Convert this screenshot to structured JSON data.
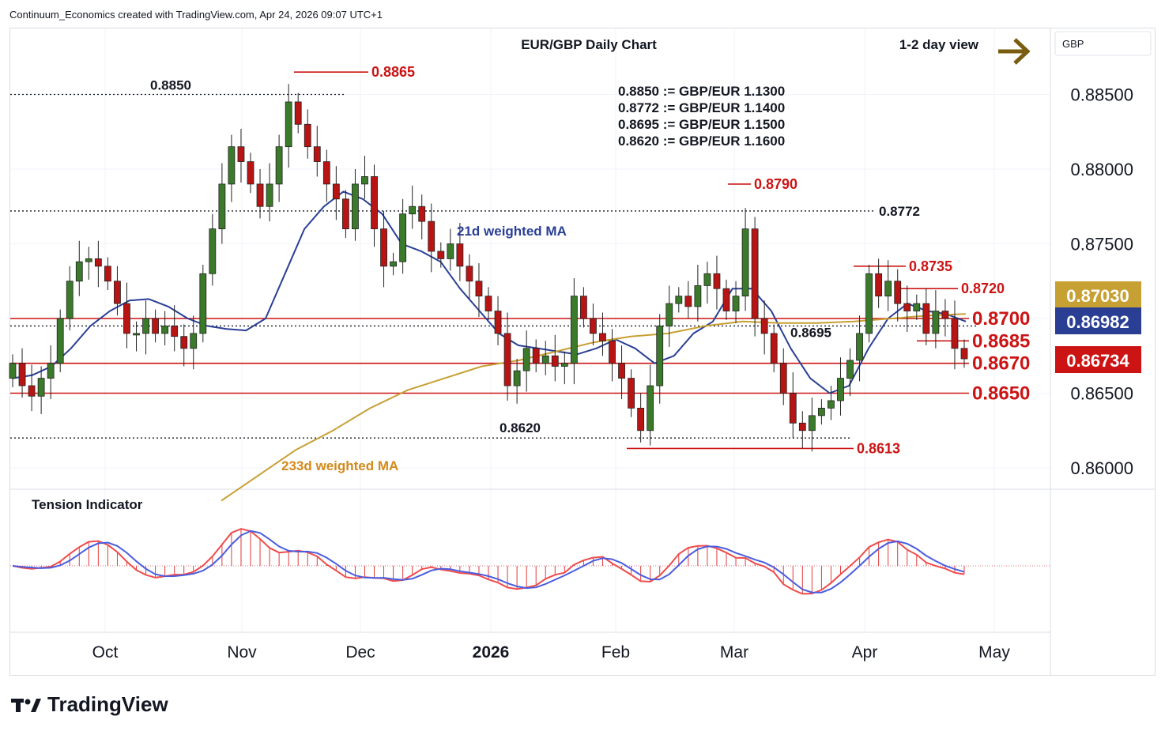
{
  "header": {
    "text": "Continuum_Economics created with TradingView.com, Apr 24, 2026 09:07 UTC+1"
  },
  "chart_data": {
    "type": "candlestick",
    "title": "EUR/GBP Daily Chart",
    "view_label": "1-2 day view",
    "currency": "GBP",
    "y_axis_ticks": [
      "0.88500",
      "0.88000",
      "0.87500",
      "0.86500",
      "0.86000"
    ],
    "x_axis_ticks": [
      "Oct",
      "Nov",
      "Dec",
      "2026",
      "Feb",
      "Mar",
      "Apr",
      "May"
    ],
    "ylim": [
      0.8585,
      0.89
    ],
    "conversions": [
      "0.8850 := GBP/EUR 1.1300",
      "0.8772 := GBP/EUR 1.1400",
      "0.8695 := GBP/EUR 1.1500",
      "0.8620 := GBP/EUR 1.1600"
    ],
    "dotted_levels": [
      {
        "label": "0.8850",
        "value": 0.885
      },
      {
        "label": "0.8772",
        "value": 0.8772
      },
      {
        "label": "0.8695",
        "value": 0.8695
      },
      {
        "label": "0.8620",
        "value": 0.862
      }
    ],
    "key_levels": [
      {
        "label": "0.8865",
        "value": 0.8865
      },
      {
        "label": "0.8790",
        "value": 0.879
      },
      {
        "label": "0.8735",
        "value": 0.8735
      },
      {
        "label": "0.8720",
        "value": 0.872
      },
      {
        "label": "0.8700",
        "value": 0.87
      },
      {
        "label": "0.8685",
        "value": 0.8685
      },
      {
        "label": "0.8670",
        "value": 0.867
      },
      {
        "label": "0.8650",
        "value": 0.865
      },
      {
        "label": "0.8613",
        "value": 0.8613
      }
    ],
    "price_badges": [
      {
        "label": "0.87030",
        "color": "#c7a033"
      },
      {
        "label": "0.86982",
        "color": "#2a3f94"
      },
      {
        "label": "0.86734",
        "color": "#cc1414"
      }
    ],
    "ma_labels": {
      "ma21": "21d weighted MA",
      "ma233": "233d weighted MA"
    },
    "sub_panel_title": "Tension Indicator",
    "close_series": [
      0.867,
      0.8655,
      0.8648,
      0.866,
      0.867,
      0.87,
      0.8725,
      0.8738,
      0.874,
      0.8735,
      0.8725,
      0.871,
      0.869,
      0.869,
      0.87,
      0.869,
      0.8695,
      0.8688,
      0.868,
      0.869,
      0.873,
      0.876,
      0.879,
      0.8815,
      0.8805,
      0.879,
      0.8775,
      0.879,
      0.8815,
      0.8845,
      0.883,
      0.8815,
      0.8805,
      0.879,
      0.878,
      0.876,
      0.879,
      0.8795,
      0.876,
      0.8735,
      0.8738,
      0.877,
      0.8775,
      0.8765,
      0.8745,
      0.874,
      0.875,
      0.8735,
      0.8725,
      0.8715,
      0.8705,
      0.869,
      0.8655,
      0.8665,
      0.868,
      0.867,
      0.8675,
      0.8668,
      0.867,
      0.8715,
      0.87,
      0.869,
      0.8685,
      0.867,
      0.866,
      0.864,
      0.8625,
      0.8655,
      0.8695,
      0.871,
      0.8715,
      0.8708,
      0.8722,
      0.873,
      0.872,
      0.8705,
      0.8715,
      0.876,
      0.87,
      0.869,
      0.867,
      0.865,
      0.863,
      0.8625,
      0.8635,
      0.864,
      0.8645,
      0.866,
      0.8672,
      0.869,
      0.873,
      0.8715,
      0.8725,
      0.871,
      0.8705,
      0.871,
      0.869,
      0.8705,
      0.87,
      0.868,
      0.8673
    ],
    "ma21_series": [
      0.866,
      0.8662,
      0.8668,
      0.868,
      0.8695,
      0.8705,
      0.8712,
      0.8713,
      0.8708,
      0.87,
      0.8695,
      0.8693,
      0.8692,
      0.87,
      0.873,
      0.876,
      0.8775,
      0.8785,
      0.878,
      0.877,
      0.875,
      0.8745,
      0.8738,
      0.872,
      0.8705,
      0.869,
      0.8682,
      0.868,
      0.8678,
      0.8676,
      0.868,
      0.8686,
      0.868,
      0.867,
      0.8675,
      0.869,
      0.8698,
      0.872,
      0.872,
      0.8705,
      0.868,
      0.866,
      0.865,
      0.8655,
      0.868,
      0.87,
      0.871,
      0.8705,
      0.8703,
      0.8698
    ],
    "ma233_series": [
      0.8578,
      0.8595,
      0.8612,
      0.8625,
      0.864,
      0.8652,
      0.866,
      0.8668,
      0.8672,
      0.8678,
      0.8684,
      0.8688,
      0.869,
      0.8695,
      0.8698,
      0.8697,
      0.8697,
      0.8698,
      0.87,
      0.8702,
      0.8703
    ]
  }
}
